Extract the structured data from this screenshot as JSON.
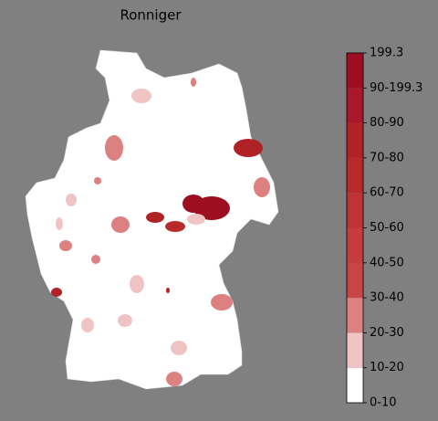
{
  "title": "Ronniger",
  "colorbar": {
    "labels": [
      "0-10",
      "10-20",
      "20-30",
      "30-40",
      "40-50",
      "50-60",
      "60-70",
      "70-80",
      "80-90",
      "90-199.3",
      "199.3"
    ],
    "colors": [
      "#ffffff",
      "#f0c4c4",
      "#dc8080",
      "#c84545",
      "#c43c3c",
      "#be3434",
      "#b82a2a",
      "#b02226",
      "#a8182a",
      "#9e0e22"
    ]
  }
}
